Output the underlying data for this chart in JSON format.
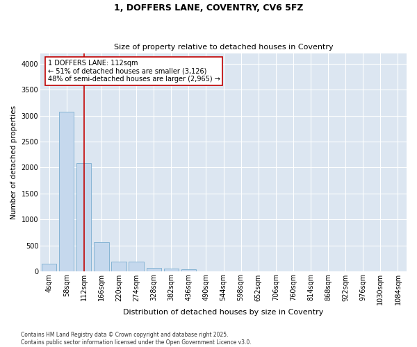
{
  "title_line1": "1, DOFFERS LANE, COVENTRY, CV6 5FZ",
  "title_line2": "Size of property relative to detached houses in Coventry",
  "xlabel": "Distribution of detached houses by size in Coventry",
  "ylabel": "Number of detached properties",
  "categories": [
    "4sqm",
    "58sqm",
    "112sqm",
    "166sqm",
    "220sqm",
    "274sqm",
    "328sqm",
    "382sqm",
    "436sqm",
    "490sqm",
    "544sqm",
    "598sqm",
    "652sqm",
    "706sqm",
    "760sqm",
    "814sqm",
    "868sqm",
    "922sqm",
    "976sqm",
    "1030sqm",
    "1084sqm"
  ],
  "values": [
    150,
    3080,
    2080,
    560,
    190,
    190,
    70,
    55,
    40,
    0,
    0,
    0,
    0,
    0,
    0,
    0,
    0,
    0,
    0,
    0,
    0
  ],
  "bar_color": "#c5d8ed",
  "bar_edge_color": "#7aaed0",
  "vline_x_index": 2,
  "vline_color": "#c00000",
  "annotation_text": "1 DOFFERS LANE: 112sqm\n← 51% of detached houses are smaller (3,126)\n48% of semi-detached houses are larger (2,965) →",
  "annotation_box_edgecolor": "#c00000",
  "annotation_box_facecolor": "white",
  "ylim": [
    0,
    4200
  ],
  "yticks": [
    0,
    500,
    1000,
    1500,
    2000,
    2500,
    3000,
    3500,
    4000
  ],
  "background_color": "#dce6f1",
  "grid_color": "white",
  "title1_fontsize": 9,
  "title2_fontsize": 8,
  "ylabel_fontsize": 7.5,
  "xlabel_fontsize": 8,
  "tick_fontsize": 7,
  "annot_fontsize": 7,
  "footnote": "Contains HM Land Registry data © Crown copyright and database right 2025.\nContains public sector information licensed under the Open Government Licence v3.0.",
  "footnote_fontsize": 5.5
}
